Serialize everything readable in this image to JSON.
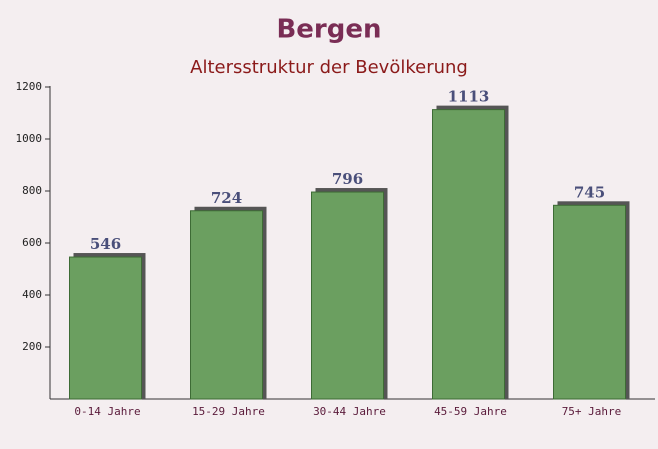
{
  "chart_data": {
    "type": "bar",
    "title": "Bergen",
    "subtitle": "Altersstruktur der Bevölkerung",
    "categories": [
      "0-14 Jahre",
      "15-29 Jahre",
      "30-44 Jahre",
      "45-59 Jahre",
      "75+ Jahre"
    ],
    "values": [
      546,
      724,
      796,
      1113,
      745
    ],
    "color": "#6b9f60",
    "ylim": [
      0,
      1200
    ],
    "yticks": [
      200,
      400,
      600,
      800,
      1000,
      1200
    ],
    "grid": false
  }
}
